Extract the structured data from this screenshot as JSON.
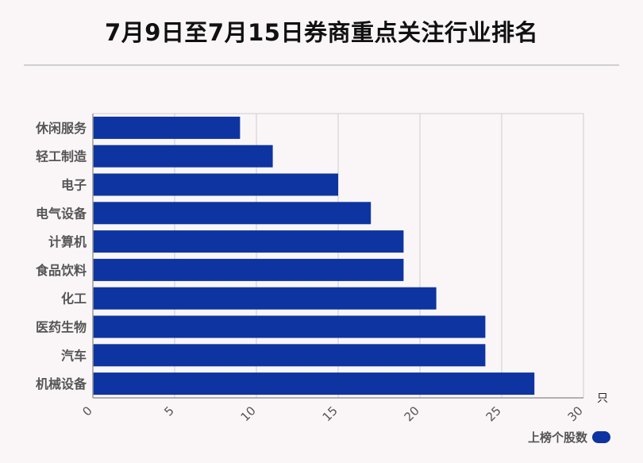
{
  "title": "7月9日至7月15日券商重点关注行业排名",
  "colors": {
    "bar": "#0d34a0",
    "grid": "#cccccc",
    "axis": "#999999",
    "text": "#555555"
  },
  "chart_data": {
    "type": "bar",
    "orientation": "horizontal",
    "categories": [
      "休闲服务",
      "轻工制造",
      "电子",
      "电气设备",
      "计算机",
      "食品饮料",
      "化工",
      "医药生物",
      "汽车",
      "机械设备"
    ],
    "series": [
      {
        "name": "上榜个股数",
        "values": [
          9,
          11,
          15,
          17,
          19,
          19,
          21,
          24,
          24,
          27
        ]
      }
    ],
    "xlim": [
      0,
      30
    ],
    "xticks": [
      0,
      5,
      10,
      15,
      20,
      25,
      30
    ],
    "xunit": "只",
    "grid": true,
    "legend_position": "bottom-right"
  }
}
